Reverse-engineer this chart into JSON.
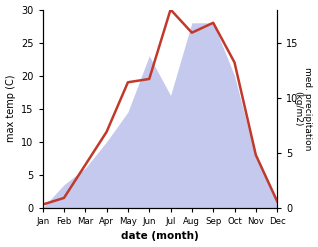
{
  "months": [
    "Jan",
    "Feb",
    "Mar",
    "Apr",
    "May",
    "Jun",
    "Jul",
    "Aug",
    "Sep",
    "Oct",
    "Nov",
    "Dec"
  ],
  "max_temp": [
    0.5,
    1.5,
    6.5,
    11.5,
    19.0,
    19.5,
    30.0,
    26.5,
    28.0,
    22.0,
    8.0,
    1.0
  ],
  "precipitation": [
    0.0,
    3.5,
    6.0,
    10.0,
    14.5,
    23.0,
    17.0,
    28.0,
    28.0,
    20.0,
    7.5,
    1.0
  ],
  "temp_color": "#c0392b",
  "precip_color": "#b0b8e8",
  "temp_ylim": [
    0,
    30
  ],
  "precip_ylim": [
    0,
    30
  ],
  "right_ylim": [
    0,
    18
  ],
  "temp_yticks": [
    0,
    5,
    10,
    15,
    20,
    25,
    30
  ],
  "right_yticks": [
    0,
    5,
    10,
    15
  ],
  "xlabel": "date (month)",
  "ylabel_left": "max temp (C)",
  "ylabel_right": "med. precipitation\n(kg/m2)",
  "background_color": "#ffffff"
}
